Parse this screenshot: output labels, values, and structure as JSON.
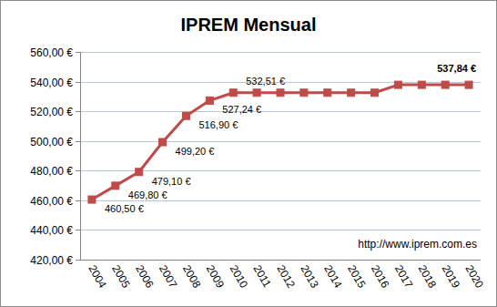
{
  "chart_data": {
    "type": "line",
    "title": "IPREM Mensual",
    "annotation": "http://www.iprem.com.es",
    "categories": [
      "2004",
      "2005",
      "2006",
      "2007",
      "2008",
      "2009",
      "2010",
      "2011",
      "2012",
      "2013",
      "2014",
      "2015",
      "2016",
      "2017",
      "2018",
      "2019",
      "2020"
    ],
    "values": [
      460.5,
      469.8,
      479.1,
      499.2,
      516.9,
      527.24,
      532.51,
      532.51,
      532.51,
      532.51,
      532.51,
      532.51,
      532.51,
      537.84,
      537.84,
      537.84,
      537.84
    ],
    "value_labels": [
      "460,50 €",
      "469,80 €",
      "479,10 €",
      "499,20 €",
      "516,90 €",
      "527,24 €",
      "532,51 €",
      null,
      null,
      null,
      null,
      null,
      null,
      null,
      null,
      null,
      "537,84 €"
    ],
    "data_labels": true,
    "color": "#be4b48",
    "marker": "square",
    "line_style": "solid",
    "ylim": [
      420,
      560
    ],
    "yticks": [
      {
        "value": 420,
        "label": "420,00 €"
      },
      {
        "value": 440,
        "label": "440,00 €"
      },
      {
        "value": 460,
        "label": "460,00 €"
      },
      {
        "value": 480,
        "label": "480,00 €"
      },
      {
        "value": 500,
        "label": "500,00 €"
      },
      {
        "value": 520,
        "label": "520,00 €"
      },
      {
        "value": 540,
        "label": "540,00 €"
      },
      {
        "value": 560,
        "label": "560,00 €"
      }
    ],
    "grid": true
  }
}
